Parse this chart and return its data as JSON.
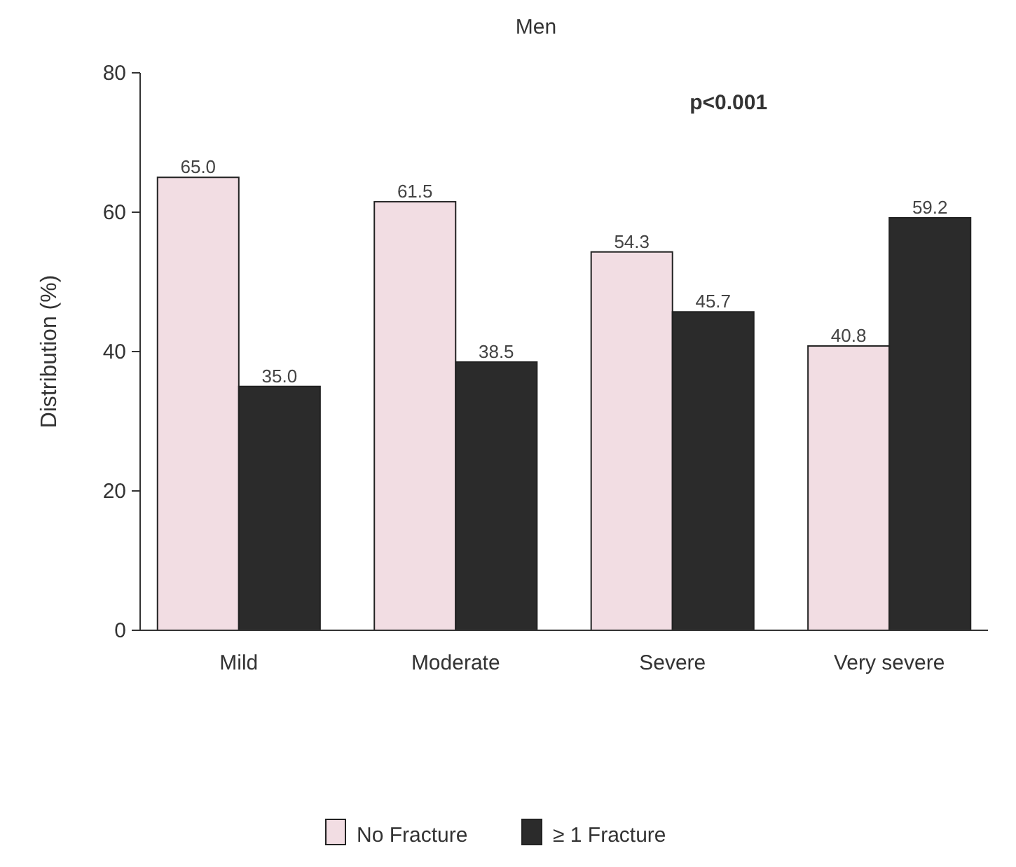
{
  "chart_data": {
    "type": "bar",
    "title": "Men",
    "ylabel": "Distribution (%)",
    "categories": [
      "Mild",
      "Moderate",
      "Severe",
      "Very severe"
    ],
    "series": [
      {
        "name": "No Fracture",
        "color": "#f2dde3",
        "values": [
          65.0,
          61.5,
          54.3,
          40.8
        ],
        "value_labels": [
          "65.0",
          "61.5",
          "54.3",
          "40.8"
        ]
      },
      {
        "name": "≥ 1 Fracture",
        "color": "#2b2b2b",
        "values": [
          35.0,
          38.5,
          45.7,
          59.2
        ],
        "value_labels": [
          "35.0",
          "38.5",
          "45.7",
          "59.2"
        ]
      }
    ],
    "ylim": [
      0,
      80
    ],
    "yticks": [
      0,
      20,
      40,
      60,
      80
    ],
    "legend": "bottom",
    "grid": false,
    "annotations": [
      "p<0.001"
    ]
  }
}
